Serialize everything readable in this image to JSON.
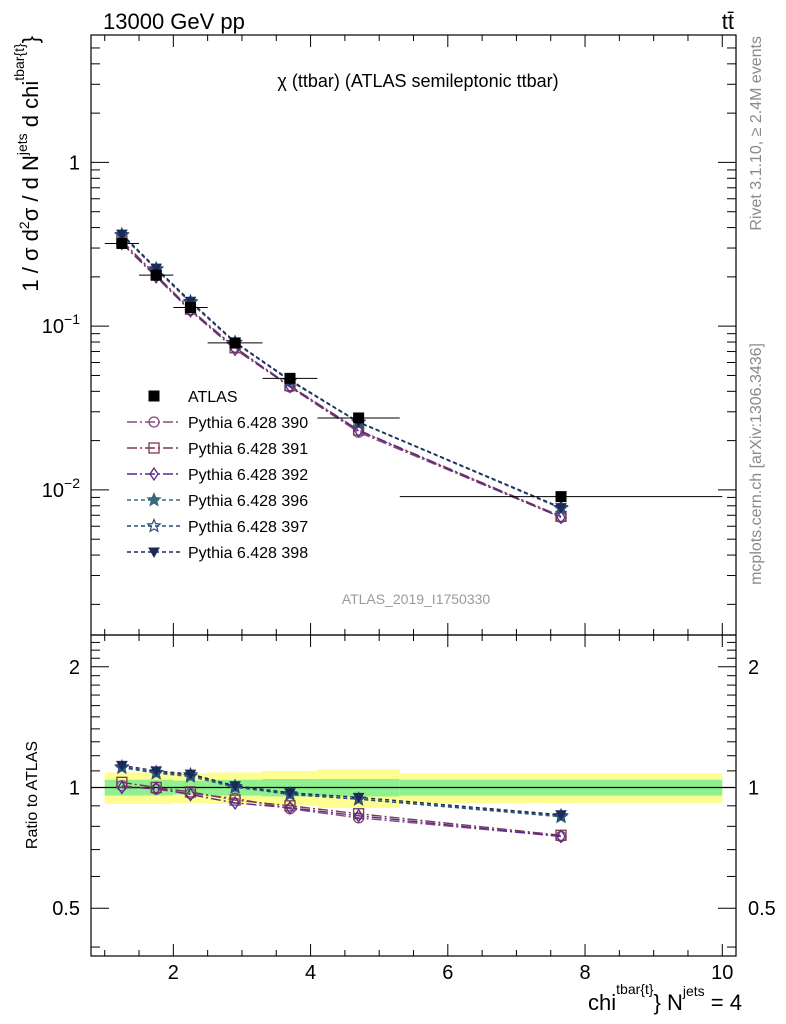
{
  "header": {
    "left": "13000 GeV pp",
    "right": "tt̄"
  },
  "side_labels": {
    "rivet": "Rivet 3.1.10, ≥ 2.4M events",
    "mcplots": "mcplots.cern.ch [arXiv:1306.3436]"
  },
  "chart_data": {
    "type": "line",
    "title": "χ (ttbar) (ATLAS semileptonic ttbar)",
    "watermark": "ATLAS_2019_I1750330",
    "ylabel_parts": {
      "a": "1 / σ d",
      "b": "2",
      "c": "σ / d N",
      "d": "jets",
      "e": " d chi",
      "f": "tbar{t}",
      "g": "}"
    },
    "xlabel_parts": {
      "a": "chi",
      "b": "tbar{t}",
      "c": "} N",
      "d": "jets",
      "e": " = 4"
    },
    "ratio_ylabel": "Ratio to ATLAS",
    "xlim": [
      0.8,
      10.2
    ],
    "ylim": [
      0.0013,
      6
    ],
    "ratio_ylim": [
      0.38,
      2.4
    ],
    "log_y": true,
    "x_ticks": [
      "2",
      "4",
      "6",
      "8",
      "10"
    ],
    "y_ticks": [
      {
        "value": 1,
        "base": "1",
        "exp": ""
      },
      {
        "value": 0.1,
        "base": "10",
        "exp": "−1"
      },
      {
        "value": 0.01,
        "base": "10",
        "exp": "−2"
      }
    ],
    "ratio_ticks": [
      "0.5",
      "1",
      "2"
    ],
    "bins": [
      [
        1.0,
        1.5
      ],
      [
        1.5,
        2.0
      ],
      [
        2.0,
        2.5
      ],
      [
        2.5,
        3.3
      ],
      [
        3.3,
        4.1
      ],
      [
        4.1,
        5.3
      ],
      [
        5.3,
        10.0
      ]
    ],
    "x": [
      1.25,
      1.75,
      2.25,
      2.9,
      3.7,
      4.7,
      7.65
    ],
    "data": {
      "name": "ATLAS",
      "values": [
        0.32,
        0.205,
        0.13,
        0.079,
        0.048,
        0.0275,
        0.0091
      ]
    },
    "band_inner": [
      0.045,
      0.045,
      0.04,
      0.045,
      0.05,
      0.05,
      0.045
    ],
    "band_outer": [
      0.09,
      0.09,
      0.085,
      0.09,
      0.1,
      0.11,
      0.085
    ],
    "series": [
      {
        "name": "Pythia 6.428 390",
        "color": "#8a4a7e",
        "marker": "circle",
        "dash": "10,3,2,3",
        "values": [
          0.325,
          0.203,
          0.125,
          0.0745,
          0.0425,
          0.0225,
          0.0068
        ],
        "ratio": [
          1.01,
          0.99,
          0.965,
          0.94,
          0.885,
          0.84,
          0.755
        ]
      },
      {
        "name": "Pythia 6.428 391",
        "color": "#7a3a4a",
        "marker": "square",
        "dash": "10,3,2,3",
        "values": [
          0.332,
          0.205,
          0.127,
          0.0738,
          0.0433,
          0.0232,
          0.0069
        ],
        "ratio": [
          1.03,
          1.0,
          0.975,
          0.93,
          0.9,
          0.86,
          0.76
        ]
      },
      {
        "name": "Pythia 6.428 392",
        "color": "#5a2a8a",
        "marker": "diamond",
        "dash": "10,3,2,3",
        "values": [
          0.32,
          0.2,
          0.124,
          0.0722,
          0.0428,
          0.023,
          0.0068
        ],
        "ratio": [
          1.0,
          0.995,
          0.96,
          0.915,
          0.89,
          0.85,
          0.755
        ]
      },
      {
        "name": "Pythia 6.428 396",
        "color": "#3a6a7a",
        "marker": "star",
        "dash": "4,3",
        "values": [
          0.358,
          0.222,
          0.139,
          0.079,
          0.0465,
          0.0258,
          0.0077
        ],
        "ratio": [
          1.12,
          1.085,
          1.065,
          1.0,
          0.965,
          0.935,
          0.845
        ]
      },
      {
        "name": "Pythia 6.428 397",
        "color": "#2a4a7a",
        "marker": "star-open",
        "dash": "4,3",
        "values": [
          0.362,
          0.224,
          0.141,
          0.0795,
          0.0463,
          0.0259,
          0.0078
        ],
        "ratio": [
          1.125,
          1.09,
          1.075,
          1.005,
          0.96,
          0.935,
          0.85
        ]
      },
      {
        "name": "Pythia 6.428 398",
        "color": "#1a2a5a",
        "marker": "triangle-down",
        "dash": "4,3",
        "values": [
          0.365,
          0.226,
          0.142,
          0.08,
          0.047,
          0.026,
          0.0078
        ],
        "ratio": [
          1.135,
          1.1,
          1.08,
          1.01,
          0.97,
          0.945,
          0.855
        ]
      }
    ],
    "legend_position": "middle-left"
  },
  "colors": {
    "data": "#000000",
    "band_inner": "#8ff08f",
    "band_outer": "#fdfd90",
    "side_text": "#8a8a8a"
  }
}
